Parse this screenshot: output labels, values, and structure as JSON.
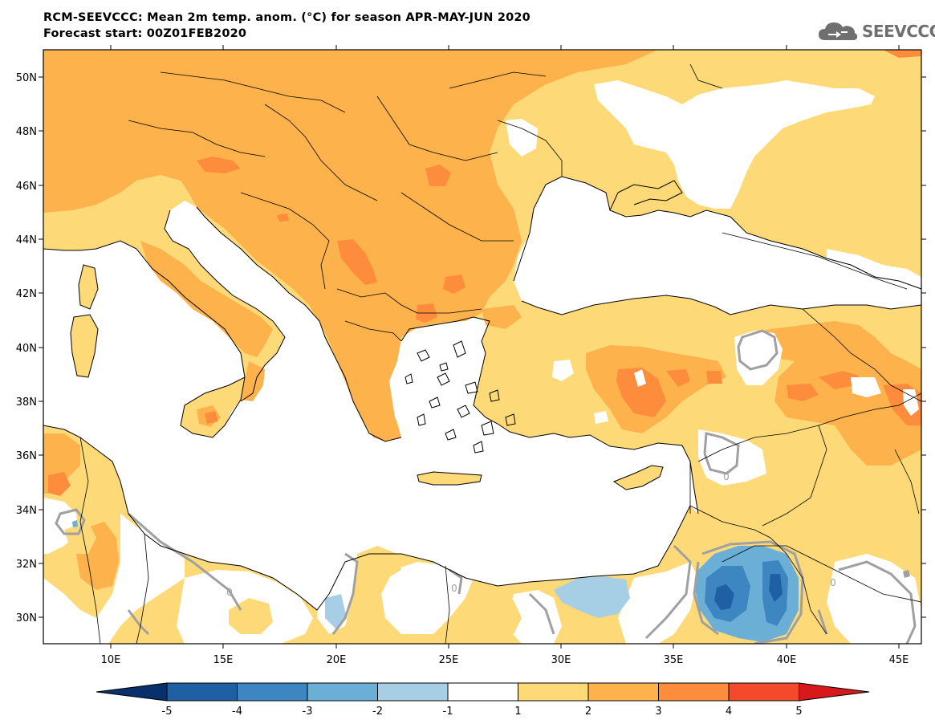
{
  "title": {
    "line1": "RCM-SEEVCCC: Mean 2m temp. anom. (°C) for season APR-MAY-JUN 2020",
    "line2": "Forecast start: 00Z01FEB2020"
  },
  "logo": {
    "text": "SEEVCCC",
    "icon": "cloud-icon"
  },
  "map": {
    "lon_range": [
      7,
      46
    ],
    "lat_range": [
      29,
      51
    ],
    "lat_ticks": [
      "30N",
      "32N",
      "34N",
      "36N",
      "38N",
      "40N",
      "42N",
      "44N",
      "46N",
      "48N",
      "50N"
    ],
    "lon_ticks": [
      "10E",
      "15E",
      "20E",
      "25E",
      "30E",
      "35E",
      "40E",
      "45E"
    ],
    "contour_labels": [
      "0",
      "0",
      "0",
      "0"
    ]
  },
  "colorbar": {
    "labels": [
      "-5",
      "-4",
      "-3",
      "-2",
      "-1",
      "1",
      "2",
      "3",
      "4",
      "5"
    ],
    "colors": [
      "#08306b",
      "#1f5fa4",
      "#3d86c1",
      "#6baed6",
      "#a6cfe6",
      "#ffffff",
      "#fdd978",
      "#fdb24c",
      "#fd8d3c",
      "#f24a2a",
      "#d7191c"
    ]
  },
  "colors": {
    "ocean": "#ffffff",
    "anom_1_2": "#fdd978",
    "anom_2_3": "#fdb24c",
    "anom_3_4": "#fd8d3c",
    "anom_neg_1_2": "#a6cfe6",
    "anom_neg_2_3": "#6baed6",
    "anom_neg_3_4": "#3d86c1",
    "anom_neg_4_5": "#1f5fa4",
    "zero_contour": "#a0a0a0"
  }
}
